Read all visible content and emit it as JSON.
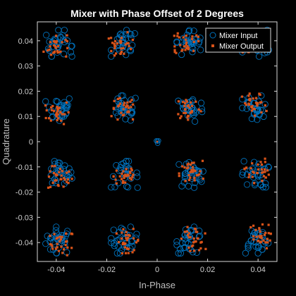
{
  "chart_data": {
    "type": "scatter",
    "title": "Mixer with Phase Offset of 2 Degrees",
    "xlabel": "In-Phase",
    "ylabel": "Quadrature",
    "xlim": [
      -0.0475,
      0.0475
    ],
    "ylim": [
      -0.0475,
      0.0475
    ],
    "xticks": [
      -0.04,
      -0.02,
      0,
      0.02,
      0.04
    ],
    "xtick_labels": [
      "-0.04",
      "-0.02",
      "0",
      "0.02",
      "0.04"
    ],
    "yticks": [
      -0.04,
      -0.03,
      -0.02,
      -0.01,
      0,
      0.01,
      0.02,
      0.03,
      0.04
    ],
    "ytick_labels": [
      "-0.04",
      "-0.03",
      "-0.02",
      "-0.01",
      "0",
      "0.01",
      "0.02",
      "0.03",
      "0.04"
    ],
    "grid": false,
    "legend_position": "top-right",
    "constellation_levels": [
      -0.039,
      -0.013,
      0.013,
      0.039
    ],
    "cluster_spread": 0.005,
    "points_per_cluster": 30,
    "origin_cluster": [
      0,
      0
    ],
    "series": [
      {
        "name": "Mixer Input",
        "marker": "open-circle",
        "color": "#0072BD"
      },
      {
        "name": "Mixer Output",
        "marker": "square",
        "color": "#D95319"
      }
    ]
  }
}
